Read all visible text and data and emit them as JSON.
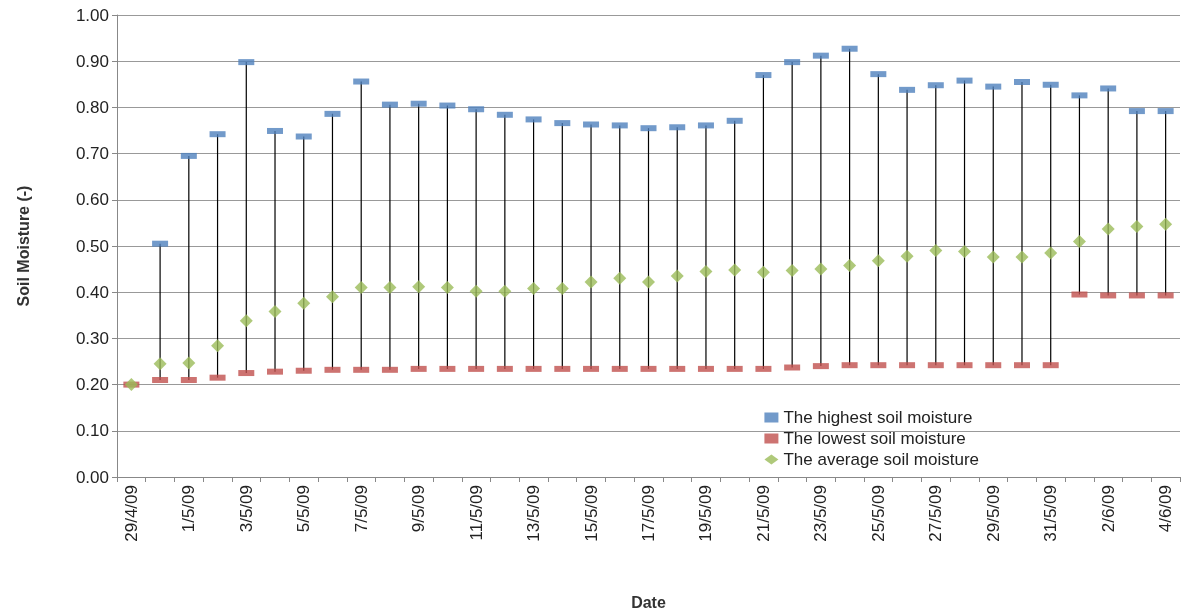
{
  "chart_data": {
    "type": "scatter",
    "xlabel": "Date",
    "ylabel": "Soil Moisture (-)",
    "categories": [
      "29/4/09",
      null,
      "1/5/09",
      null,
      "3/5/09",
      null,
      "5/5/09",
      null,
      "7/5/09",
      null,
      "9/5/09",
      null,
      "11/5/09",
      null,
      "13/5/09",
      null,
      "15/5/09",
      null,
      "17/5/09",
      null,
      "19/5/09",
      null,
      "21/5/09",
      null,
      "23/5/09",
      null,
      "25/5/09",
      null,
      "27/5/09",
      null,
      "29/5/09",
      null,
      "31/5/09",
      null,
      "2/6/09",
      null,
      "4/6/09"
    ],
    "series": [
      {
        "name": "The highest soil moisture",
        "color": "#4f81bd",
        "marker": "square",
        "values": [
          null,
          0.505,
          0.695,
          0.742,
          0.898,
          0.749,
          0.737,
          0.786,
          0.856,
          0.806,
          0.808,
          0.804,
          0.796,
          0.784,
          0.774,
          0.766,
          0.763,
          0.761,
          0.755,
          0.757,
          0.761,
          0.771,
          0.87,
          0.898,
          0.912,
          0.927,
          0.872,
          0.838,
          0.848,
          0.858,
          0.845,
          0.855,
          0.849,
          0.826,
          0.841,
          0.792,
          0.792
        ]
      },
      {
        "name": "The lowest soil moisture",
        "color": "#c0504d",
        "marker": "square",
        "values": [
          0.2,
          0.21,
          0.21,
          0.215,
          0.225,
          0.228,
          0.23,
          0.232,
          0.232,
          0.232,
          0.234,
          0.234,
          0.234,
          0.234,
          0.234,
          0.234,
          0.234,
          0.234,
          0.234,
          0.234,
          0.234,
          0.234,
          0.234,
          0.237,
          0.24,
          0.242,
          0.242,
          0.242,
          0.242,
          0.242,
          0.242,
          0.242,
          0.242,
          0.395,
          0.393,
          0.393,
          0.393
        ]
      },
      {
        "name": "The average soil moisture",
        "color": "#9bbb59",
        "marker": "diamond",
        "values": [
          0.2,
          0.245,
          0.247,
          0.284,
          0.338,
          0.358,
          0.376,
          0.39,
          0.41,
          0.41,
          0.412,
          0.41,
          0.402,
          0.402,
          0.408,
          0.408,
          0.422,
          0.43,
          0.422,
          0.435,
          0.445,
          0.448,
          0.443,
          0.447,
          0.45,
          0.458,
          0.468,
          0.478,
          0.49,
          0.488,
          0.476,
          0.476,
          0.485,
          0.51,
          0.537,
          0.542,
          0.547
        ]
      }
    ],
    "ylim": [
      0,
      1
    ],
    "yticks": [
      {
        "value": 0,
        "label": "0.00"
      },
      {
        "value": 0.1,
        "label": "0.10"
      },
      {
        "value": 0.2,
        "label": "0.20"
      },
      {
        "value": 0.3,
        "label": "0.30"
      },
      {
        "value": 0.4,
        "label": "0.40"
      },
      {
        "value": 0.5,
        "label": "0.50"
      },
      {
        "value": 0.6,
        "label": "0.60"
      },
      {
        "value": 0.7,
        "label": "0.70"
      },
      {
        "value": 0.8,
        "label": "0.80"
      },
      {
        "value": 0.9,
        "label": "0.90"
      },
      {
        "value": 1,
        "label": "1.00"
      }
    ],
    "grid": "y",
    "legend": "bottom right"
  }
}
